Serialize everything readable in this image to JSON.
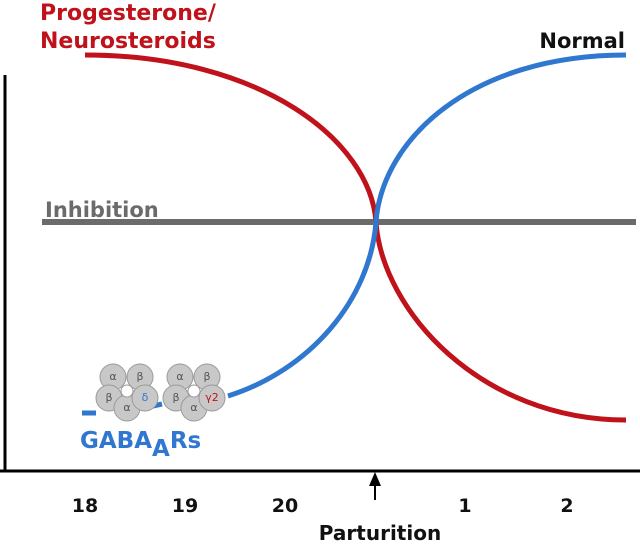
{
  "labels": {
    "progesterone": "Progesterone/",
    "neurosteroids": "Neurosteroids",
    "normal": "Normal",
    "inhibition": "Inhibition",
    "gaba_main": "GABA",
    "gaba_sub": "A",
    "gaba_tail": "Rs",
    "parturition": "Parturition"
  },
  "x_ticks": [
    "18",
    "19",
    "20",
    "1",
    "2"
  ],
  "receptors": [
    {
      "subunits": [
        "α",
        "β",
        "β",
        "α",
        "δ"
      ]
    },
    {
      "subunits": [
        "α",
        "β",
        "β",
        "α",
        "γ2"
      ]
    }
  ]
}
